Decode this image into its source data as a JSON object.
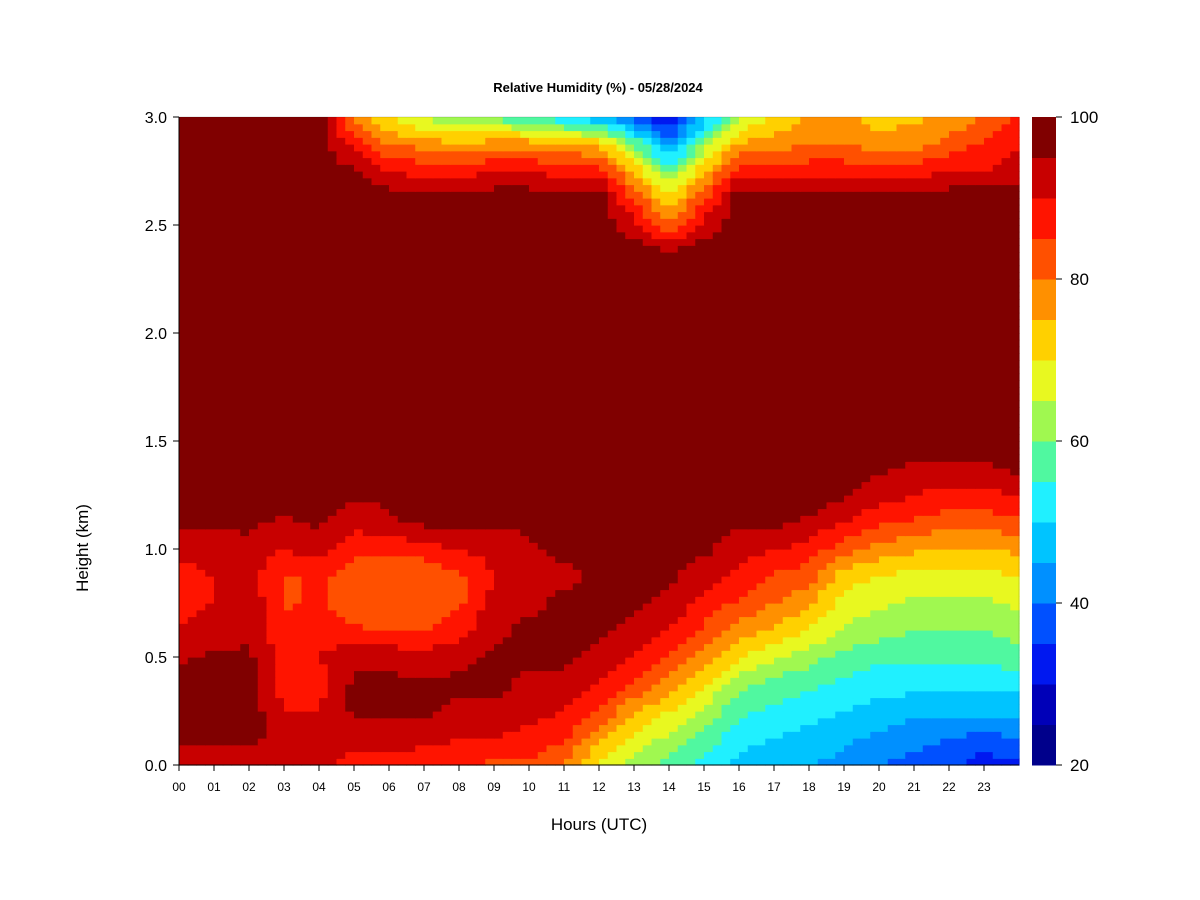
{
  "chart_data": {
    "type": "heatmap",
    "title": "Relative Humidity (%) - 05/28/2024",
    "xlabel": "Hours (UTC)",
    "ylabel": "Height (km)",
    "xlim": [
      0,
      24
    ],
    "ylim": [
      0.0,
      3.0
    ],
    "x_ticks": [
      "00",
      "01",
      "02",
      "03",
      "04",
      "05",
      "06",
      "07",
      "08",
      "09",
      "10",
      "11",
      "12",
      "13",
      "14",
      "15",
      "16",
      "17",
      "18",
      "19",
      "20",
      "21",
      "22",
      "23"
    ],
    "y_ticks": [
      "0.0",
      "0.5",
      "1.0",
      "1.5",
      "2.0",
      "2.5",
      "3.0"
    ],
    "colorbar": {
      "range": [
        20,
        100
      ],
      "step": 5,
      "tick_values": [
        20,
        40,
        60,
        80,
        100
      ],
      "tick_labels": [
        "20",
        "40",
        "60",
        "80",
        "100"
      ],
      "colors": [
        "#00008b",
        "#0000b8",
        "#0018f0",
        "#0050ff",
        "#0090ff",
        "#00c4ff",
        "#20f0ff",
        "#50f8a0",
        "#a0f850",
        "#e8f820",
        "#ffd000",
        "#ff9000",
        "#ff5000",
        "#ff1400",
        "#c80000",
        "#800000"
      ]
    },
    "grid_x": [
      0,
      1,
      2,
      3,
      4,
      5,
      6,
      7,
      8,
      9,
      10,
      11,
      12,
      13,
      14,
      15,
      16,
      17,
      18,
      19,
      20,
      21,
      22,
      23,
      24
    ],
    "grid_y": [
      0.0,
      0.125,
      0.25,
      0.375,
      0.5,
      0.625,
      0.75,
      0.875,
      1.0,
      1.125,
      1.25,
      1.375,
      1.5,
      1.625,
      1.75,
      1.875,
      2.0,
      2.125,
      2.25,
      2.375,
      2.5,
      2.625,
      2.75,
      2.875,
      3.0
    ],
    "values": [
      [
        92,
        90,
        92,
        92,
        92,
        88,
        88,
        86,
        86,
        84,
        84,
        80,
        68,
        62,
        58,
        52,
        48,
        46,
        45,
        44,
        40,
        38,
        36,
        32,
        34
      ],
      [
        96,
        96,
        96,
        94,
        94,
        92,
        92,
        92,
        90,
        90,
        88,
        86,
        76,
        68,
        64,
        58,
        52,
        50,
        48,
        46,
        44,
        42,
        40,
        38,
        40
      ],
      [
        98,
        98,
        98,
        90,
        90,
        96,
        96,
        96,
        94,
        94,
        92,
        90,
        84,
        76,
        70,
        64,
        56,
        54,
        52,
        50,
        48,
        46,
        46,
        46,
        46
      ],
      [
        98,
        98,
        98,
        88,
        88,
        96,
        96,
        96,
        96,
        96,
        94,
        94,
        90,
        84,
        78,
        70,
        62,
        58,
        56,
        54,
        52,
        52,
        52,
        52,
        52
      ],
      [
        94,
        96,
        96,
        88,
        90,
        94,
        94,
        92,
        94,
        96,
        96,
        96,
        94,
        90,
        84,
        78,
        70,
        66,
        62,
        58,
        56,
        56,
        56,
        56,
        58
      ],
      [
        90,
        92,
        94,
        86,
        88,
        86,
        84,
        84,
        88,
        94,
        96,
        96,
        96,
        94,
        90,
        84,
        78,
        74,
        70,
        64,
        62,
        60,
        60,
        60,
        62
      ],
      [
        88,
        90,
        94,
        84,
        86,
        82,
        82,
        80,
        84,
        92,
        94,
        96,
        96,
        96,
        94,
        88,
        84,
        80,
        76,
        68,
        66,
        64,
        64,
        64,
        66
      ],
      [
        88,
        90,
        92,
        84,
        86,
        82,
        80,
        80,
        84,
        90,
        92,
        94,
        96,
        96,
        96,
        92,
        88,
        84,
        82,
        72,
        70,
        68,
        68,
        68,
        70
      ],
      [
        92,
        92,
        94,
        90,
        92,
        86,
        86,
        88,
        90,
        92,
        94,
        96,
        96,
        96,
        96,
        96,
        92,
        90,
        88,
        82,
        78,
        76,
        74,
        74,
        76
      ],
      [
        96,
        96,
        96,
        94,
        96,
        92,
        94,
        96,
        96,
        96,
        96,
        98,
        98,
        98,
        98,
        98,
        96,
        96,
        94,
        90,
        86,
        84,
        82,
        82,
        84
      ],
      [
        98,
        98,
        98,
        96,
        98,
        96,
        96,
        98,
        98,
        98,
        98,
        98,
        98,
        98,
        98,
        98,
        98,
        98,
        98,
        96,
        92,
        90,
        88,
        88,
        90
      ],
      [
        98,
        98,
        98,
        96,
        98,
        96,
        98,
        98,
        98,
        98,
        98,
        98,
        98,
        98,
        98,
        98,
        98,
        98,
        98,
        98,
        96,
        94,
        94,
        94,
        96
      ],
      [
        98,
        98,
        98,
        96,
        98,
        96,
        98,
        98,
        98,
        98,
        98,
        98,
        98,
        98,
        98,
        98,
        98,
        98,
        98,
        98,
        98,
        98,
        98,
        98,
        98
      ],
      [
        98,
        98,
        98,
        98,
        98,
        98,
        98,
        98,
        98,
        98,
        98,
        98,
        98,
        98,
        98,
        98,
        98,
        98,
        98,
        98,
        98,
        98,
        98,
        98,
        98
      ],
      [
        98,
        98,
        98,
        98,
        98,
        98,
        98,
        98,
        98,
        98,
        98,
        98,
        98,
        98,
        98,
        98,
        98,
        98,
        98,
        98,
        98,
        98,
        98,
        98,
        98
      ],
      [
        98,
        98,
        98,
        98,
        98,
        98,
        98,
        98,
        98,
        98,
        98,
        98,
        98,
        98,
        98,
        98,
        98,
        98,
        98,
        98,
        98,
        98,
        98,
        98,
        98
      ],
      [
        98,
        98,
        98,
        98,
        98,
        98,
        98,
        98,
        98,
        98,
        98,
        98,
        98,
        98,
        98,
        98,
        98,
        98,
        98,
        98,
        98,
        98,
        98,
        98,
        98
      ],
      [
        98,
        98,
        98,
        98,
        98,
        98,
        98,
        98,
        98,
        98,
        98,
        98,
        98,
        98,
        98,
        98,
        98,
        98,
        98,
        98,
        98,
        98,
        98,
        98,
        98
      ],
      [
        98,
        98,
        98,
        98,
        98,
        98,
        98,
        98,
        98,
        98,
        98,
        98,
        98,
        98,
        98,
        98,
        98,
        98,
        98,
        98,
        98,
        98,
        98,
        98,
        98
      ],
      [
        98,
        98,
        98,
        98,
        98,
        98,
        98,
        98,
        98,
        98,
        98,
        98,
        98,
        98,
        96,
        98,
        98,
        98,
        98,
        98,
        98,
        98,
        98,
        98,
        98
      ],
      [
        98,
        98,
        98,
        98,
        98,
        98,
        98,
        98,
        98,
        98,
        98,
        98,
        98,
        92,
        82,
        92,
        98,
        98,
        98,
        98,
        98,
        98,
        98,
        98,
        98
      ],
      [
        98,
        98,
        98,
        98,
        98,
        98,
        98,
        98,
        98,
        98,
        98,
        98,
        98,
        84,
        72,
        84,
        98,
        98,
        98,
        98,
        98,
        98,
        98,
        98,
        98
      ],
      [
        98,
        98,
        98,
        98,
        98,
        96,
        90,
        88,
        88,
        90,
        90,
        88,
        88,
        74,
        58,
        74,
        88,
        88,
        88,
        88,
        88,
        88,
        90,
        90,
        92
      ],
      [
        98,
        98,
        98,
        98,
        98,
        88,
        80,
        78,
        76,
        78,
        78,
        76,
        74,
        60,
        42,
        62,
        76,
        78,
        80,
        80,
        78,
        78,
        82,
        86,
        90
      ],
      [
        98,
        98,
        98,
        98,
        98,
        80,
        70,
        64,
        60,
        58,
        56,
        50,
        46,
        38,
        30,
        46,
        64,
        70,
        76,
        76,
        72,
        74,
        76,
        80,
        86
      ]
    ]
  }
}
